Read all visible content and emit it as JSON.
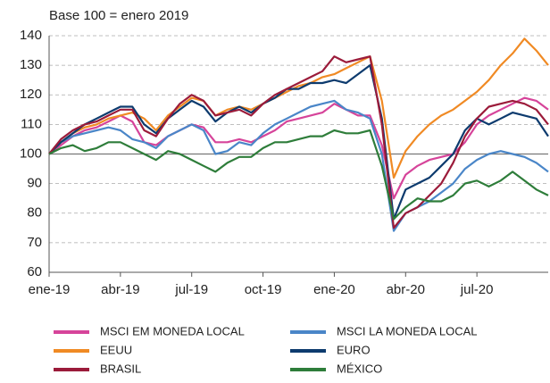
{
  "chart_data": {
    "type": "line",
    "subtitle": "Base 100 = enero 2019",
    "categories": [
      "ene-19",
      null,
      null,
      null,
      null,
      null,
      "abr-19",
      null,
      null,
      null,
      null,
      null,
      "jul-19",
      null,
      null,
      null,
      null,
      null,
      "oct-19",
      null,
      null,
      null,
      null,
      null,
      "ene-20",
      null,
      null,
      null,
      null,
      null,
      "abr-20",
      null,
      null,
      null,
      null,
      null,
      "jul-20",
      null,
      null,
      null,
      null,
      null,
      null
    ],
    "ylim": [
      60,
      140
    ],
    "yticks": [
      60,
      70,
      80,
      90,
      100,
      110,
      120,
      130,
      140
    ],
    "grid": true,
    "reference_line": 100,
    "series": [
      {
        "name": "MSCI EM MONEDA LOCAL",
        "color": "#d6449a",
        "values": [
          100,
          103,
          106,
          108,
          109,
          111,
          113,
          111,
          104,
          103,
          106,
          108,
          110,
          109,
          104,
          104,
          105,
          104,
          106,
          108,
          111,
          112,
          113,
          114,
          117,
          115,
          113,
          113,
          103,
          85,
          93,
          96,
          98,
          99,
          100,
          104,
          110,
          113,
          115,
          117,
          119,
          118,
          115
        ]
      },
      {
        "name": "MSCI LA MONEDA LOCAL",
        "color": "#4a86c8",
        "values": [
          100,
          104,
          106,
          107,
          108,
          109,
          108,
          105,
          104,
          102,
          106,
          108,
          110,
          108,
          100,
          101,
          104,
          103,
          107,
          110,
          112,
          114,
          116,
          117,
          118,
          115,
          114,
          112,
          100,
          74,
          80,
          82,
          84,
          87,
          90,
          95,
          98,
          100,
          101,
          100,
          99,
          97,
          94
        ]
      },
      {
        "name": "EEUU",
        "color": "#f08a24",
        "values": [
          100,
          104,
          107,
          109,
          110,
          112,
          113,
          114,
          112,
          108,
          113,
          116,
          119,
          118,
          113,
          115,
          116,
          115,
          117,
          119,
          121,
          123,
          124,
          126,
          127,
          129,
          131,
          133,
          118,
          92,
          101,
          106,
          110,
          113,
          115,
          118,
          121,
          125,
          130,
          134,
          139,
          135,
          130
        ]
      },
      {
        "name": "EURO",
        "color": "#0d3b6e",
        "values": [
          100,
          104,
          107,
          110,
          112,
          114,
          116,
          116,
          110,
          107,
          112,
          115,
          118,
          116,
          111,
          114,
          116,
          114,
          117,
          119,
          122,
          122,
          124,
          124,
          125,
          124,
          127,
          130,
          112,
          78,
          88,
          90,
          92,
          96,
          100,
          108,
          112,
          110,
          112,
          114,
          113,
          112,
          106
        ]
      },
      {
        "name": "BRASIL",
        "color": "#9b1b3a",
        "values": [
          100,
          105,
          108,
          110,
          111,
          113,
          115,
          115,
          108,
          106,
          112,
          117,
          120,
          118,
          113,
          114,
          115,
          113,
          117,
          120,
          122,
          124,
          126,
          128,
          133,
          131,
          132,
          133,
          110,
          75,
          80,
          82,
          86,
          90,
          97,
          106,
          112,
          116,
          117,
          118,
          117,
          115,
          110
        ]
      },
      {
        "name": "MÉXICO",
        "color": "#2e7d3a",
        "values": [
          100,
          102,
          103,
          101,
          102,
          104,
          104,
          102,
          100,
          98,
          101,
          100,
          98,
          96,
          94,
          97,
          99,
          99,
          102,
          104,
          104,
          105,
          106,
          106,
          108,
          107,
          107,
          108,
          96,
          78,
          82,
          85,
          84,
          84,
          86,
          90,
          91,
          89,
          91,
          94,
          91,
          88,
          86
        ]
      }
    ]
  }
}
